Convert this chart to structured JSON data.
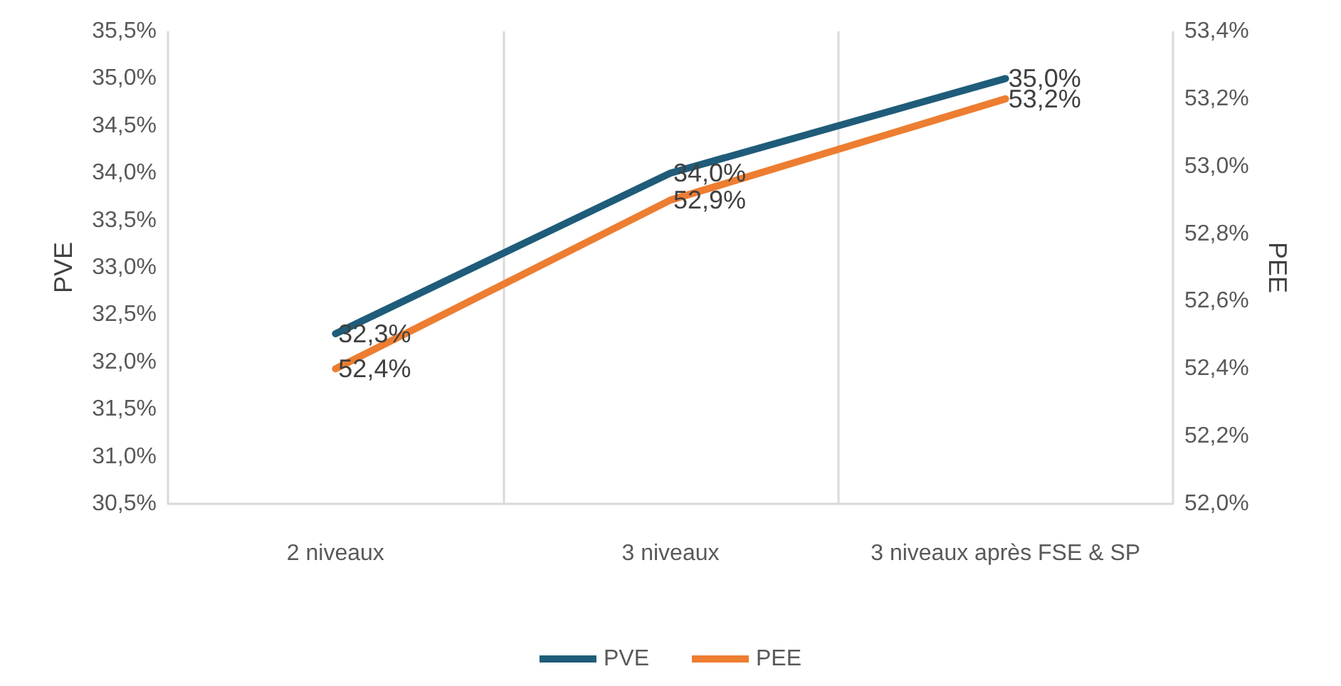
{
  "chart_data": {
    "type": "line",
    "ylabel": "PVE",
    "y2label": "PEE",
    "categories": [
      "2 niveaux",
      "3 niveaux",
      "3 niveaux après FSE & SP"
    ],
    "series": [
      {
        "name": "PVE",
        "color": "#1f5c7a",
        "values": [
          32.3,
          34.0,
          35.0
        ],
        "value_labels": [
          "32,3%",
          "34,0%",
          "35,0%"
        ]
      },
      {
        "name": "PEE",
        "color": "#ed7d31",
        "axis": "y2",
        "values": [
          52.4,
          52.9,
          53.2
        ],
        "value_labels": [
          "52,4%",
          "52,9%",
          "53,2%"
        ]
      }
    ],
    "ylim": [
      30.5,
      35.5
    ],
    "yticks": [
      {
        "value": 30.5,
        "label": "30,5%"
      },
      {
        "value": 31.0,
        "label": "31,0%"
      },
      {
        "value": 31.5,
        "label": "31,5%"
      },
      {
        "value": 32.0,
        "label": "32,0%"
      },
      {
        "value": 32.5,
        "label": "32,5%"
      },
      {
        "value": 33.0,
        "label": "33,0%"
      },
      {
        "value": 33.5,
        "label": "33,5%"
      },
      {
        "value": 34.0,
        "label": "34,0%"
      },
      {
        "value": 34.5,
        "label": "34,5%"
      },
      {
        "value": 35.0,
        "label": "35,0%"
      },
      {
        "value": 35.5,
        "label": "35,5%"
      }
    ],
    "y2lim": [
      52.0,
      53.4
    ],
    "y2ticks": [
      {
        "value": 52.0,
        "label": "52,0%"
      },
      {
        "value": 52.2,
        "label": "52,2%"
      },
      {
        "value": 52.4,
        "label": "52,4%"
      },
      {
        "value": 52.6,
        "label": "52,6%"
      },
      {
        "value": 52.8,
        "label": "52,8%"
      },
      {
        "value": 53.0,
        "label": "53,0%"
      },
      {
        "value": 53.2,
        "label": "53,2%"
      },
      {
        "value": 53.4,
        "label": "53,4%"
      }
    ],
    "grid": "x",
    "legend": "bottom",
    "marker": "none",
    "line_style": "solid"
  }
}
